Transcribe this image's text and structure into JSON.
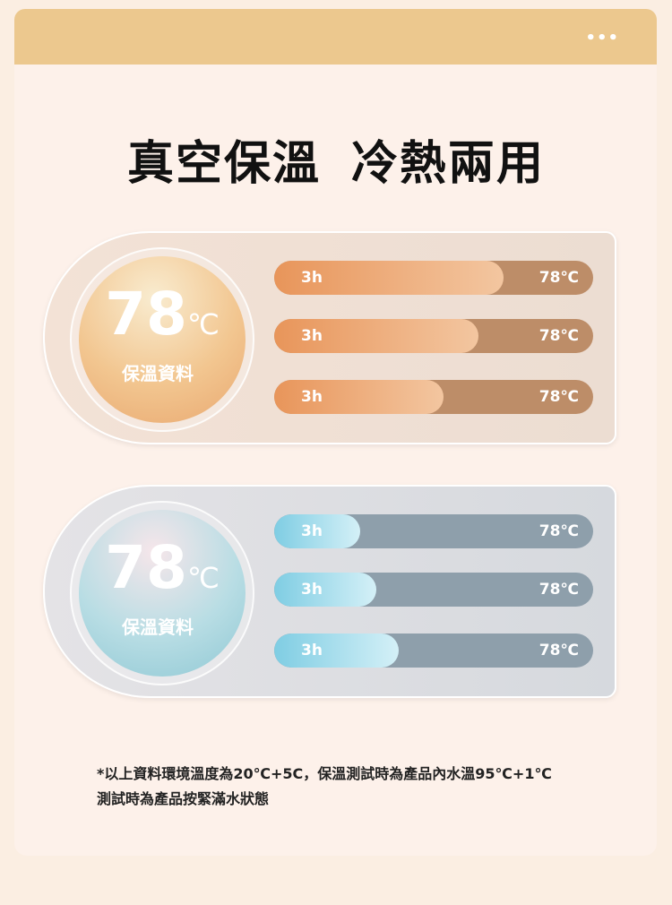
{
  "menu_icon": "more-horizontal-icon",
  "menu_label": "•••",
  "title": "真空保溫 冷熱兩用",
  "panels": [
    {
      "theme": "warm",
      "accent": "#e8955a",
      "temp": "78",
      "unit": "℃",
      "label": "保溫資料",
      "bars": [
        {
          "left": "3h",
          "right": "78℃",
          "fill_pct": 72
        },
        {
          "left": "3h",
          "right": "78℃",
          "fill_pct": 64
        },
        {
          "left": "3h",
          "right": "78℃",
          "fill_pct": 53
        }
      ]
    },
    {
      "theme": "cool",
      "accent": "#7fcde3",
      "temp": "78",
      "unit": "℃",
      "label": "保溫資料",
      "bars": [
        {
          "left": "3h",
          "right": "78℃",
          "fill_pct": 27
        },
        {
          "left": "3h",
          "right": "78℃",
          "fill_pct": 32
        },
        {
          "left": "3h",
          "right": "78℃",
          "fill_pct": 39
        }
      ]
    }
  ],
  "note": {
    "line1": "*以上資料環境溫度為20℃+5C，保溫測試時為產品內水溫95℃+1℃",
    "line2": "測試時為產品按緊滿水狀態"
  }
}
